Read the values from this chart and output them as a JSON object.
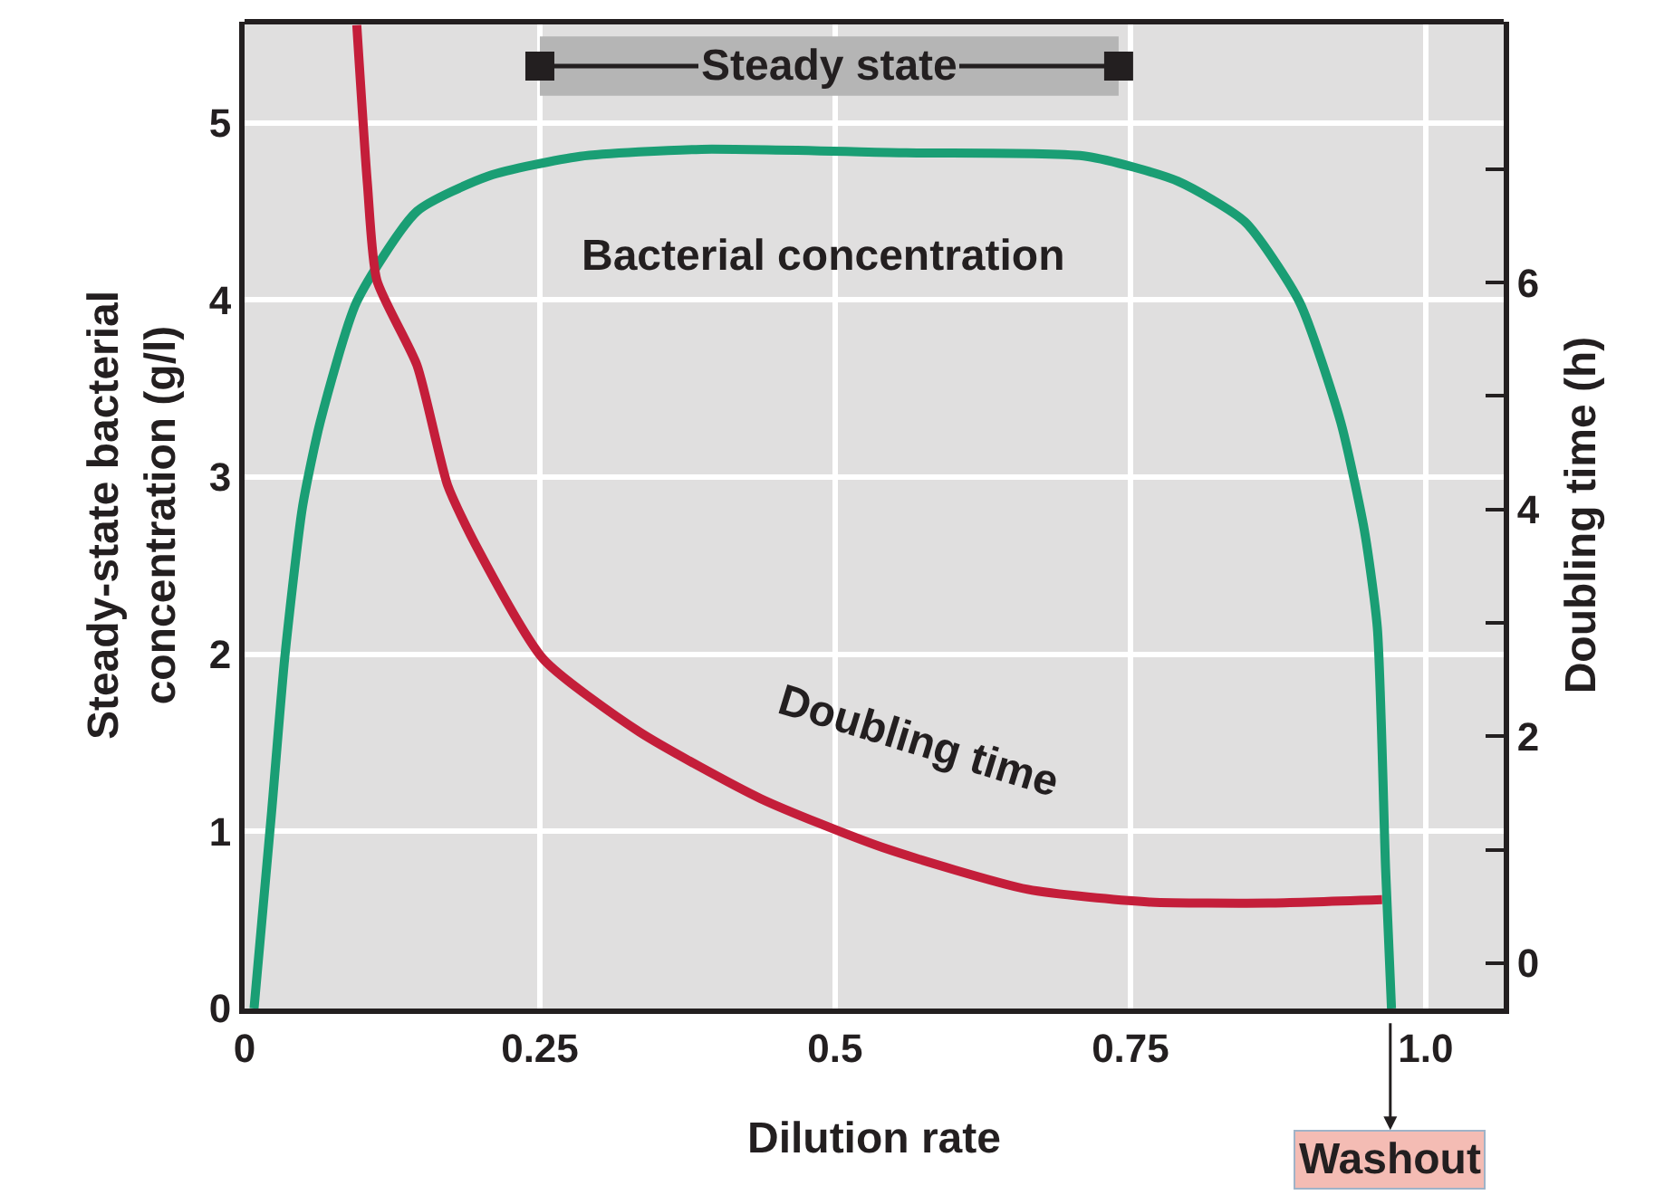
{
  "chart_data": {
    "type": "line",
    "xlabel": "Dilution rate",
    "ylabel": "Steady-state bacterial\nconcentration (g/l)",
    "y2label": "Doubling time (h)",
    "xlim": [
      0,
      1.066
    ],
    "xticks": [
      0,
      0.25,
      0.5,
      0.75,
      {
        "value": 1.0,
        "label": "1.0"
      }
    ],
    "ylim": [
      0,
      5.57
    ],
    "yticks": [
      0,
      1,
      2,
      3,
      4,
      5
    ],
    "y2lim": [
      -0.4,
      8.3
    ],
    "y2ticks": [
      0,
      {
        "value": 1,
        "label": null
      },
      2,
      {
        "value": 3,
        "label": null
      },
      4,
      {
        "value": 5,
        "label": null
      },
      6,
      {
        "value": 7,
        "label": null
      }
    ],
    "grid": true,
    "marker": "none",
    "line_style": "solid",
    "series": [
      {
        "color": "#1a9e74",
        "x": [
          0.008,
          0.023,
          0.034,
          0.049,
          0.064,
          0.095,
          0.146,
          0.207,
          0.284,
          0.387,
          0.56,
          0.713,
          0.79,
          0.847,
          0.893,
          0.928,
          0.948,
          0.959,
          0.966,
          0.971
        ],
        "values": [
          0,
          1.12,
          1.98,
          2.83,
          3.31,
          3.99,
          4.5,
          4.7,
          4.81,
          4.85,
          4.83,
          4.81,
          4.67,
          4.44,
          3.99,
          3.31,
          2.7,
          2.15,
          0.79,
          0
        ]
      },
      {
        "color": "#c41e3a",
        "axis": "y2",
        "x": [
          0.095,
          0.104,
          0.112,
          0.146,
          0.172,
          0.196,
          0.253,
          0.334,
          0.437,
          0.54,
          0.663,
          0.764,
          0.867,
          0.963
        ],
        "values": [
          8.27,
          6.87,
          6.02,
          5.27,
          4.21,
          3.68,
          2.68,
          2.04,
          1.45,
          1.02,
          0.65,
          0.54,
          0.53,
          0.56
        ]
      }
    ],
    "bands": [
      {
        "axis": "x",
        "from": 0.25,
        "to": 0.74,
        "label": "Steady state",
        "color": "#b5b5b5"
      }
    ],
    "annotations": [
      "Bacterial concentration",
      "Doubling time",
      {
        "text": "Washout",
        "x": 0.97
      }
    ]
  }
}
